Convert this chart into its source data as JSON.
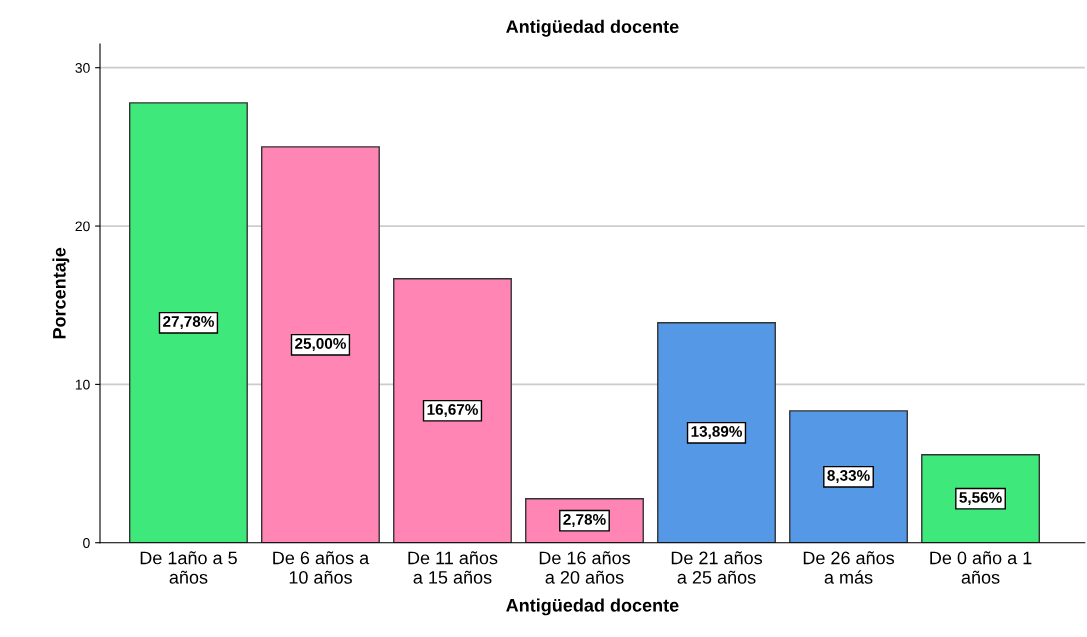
{
  "chart_data": {
    "type": "bar",
    "title": "Antigüedad docente",
    "xlabel": "Antigüedad docente",
    "ylabel": "Porcentaje",
    "categories": [
      "De 1año a 5\naños",
      "De 6 años a\n10 años",
      "De 11 años\na 15 años",
      "De 16 años\na 20 años",
      "De 21 años\na 25 años",
      "De 26 años\na más",
      "De 0 año a 1\naños"
    ],
    "values": [
      27.78,
      25.0,
      16.67,
      2.78,
      13.89,
      8.33,
      5.56
    ],
    "value_labels": [
      "27,78%",
      "25,00%",
      "16,67%",
      "2,78%",
      "13,89%",
      "8,33%",
      "5,56%"
    ],
    "colors": [
      "#3fe87a",
      "#ff85b4",
      "#ff85b4",
      "#ff85b4",
      "#5599e6",
      "#5599e6",
      "#3fe87a"
    ],
    "ylim": [
      0,
      31.5
    ],
    "yticks": [
      0,
      10,
      20,
      30
    ],
    "grid": "y",
    "legend": false
  }
}
